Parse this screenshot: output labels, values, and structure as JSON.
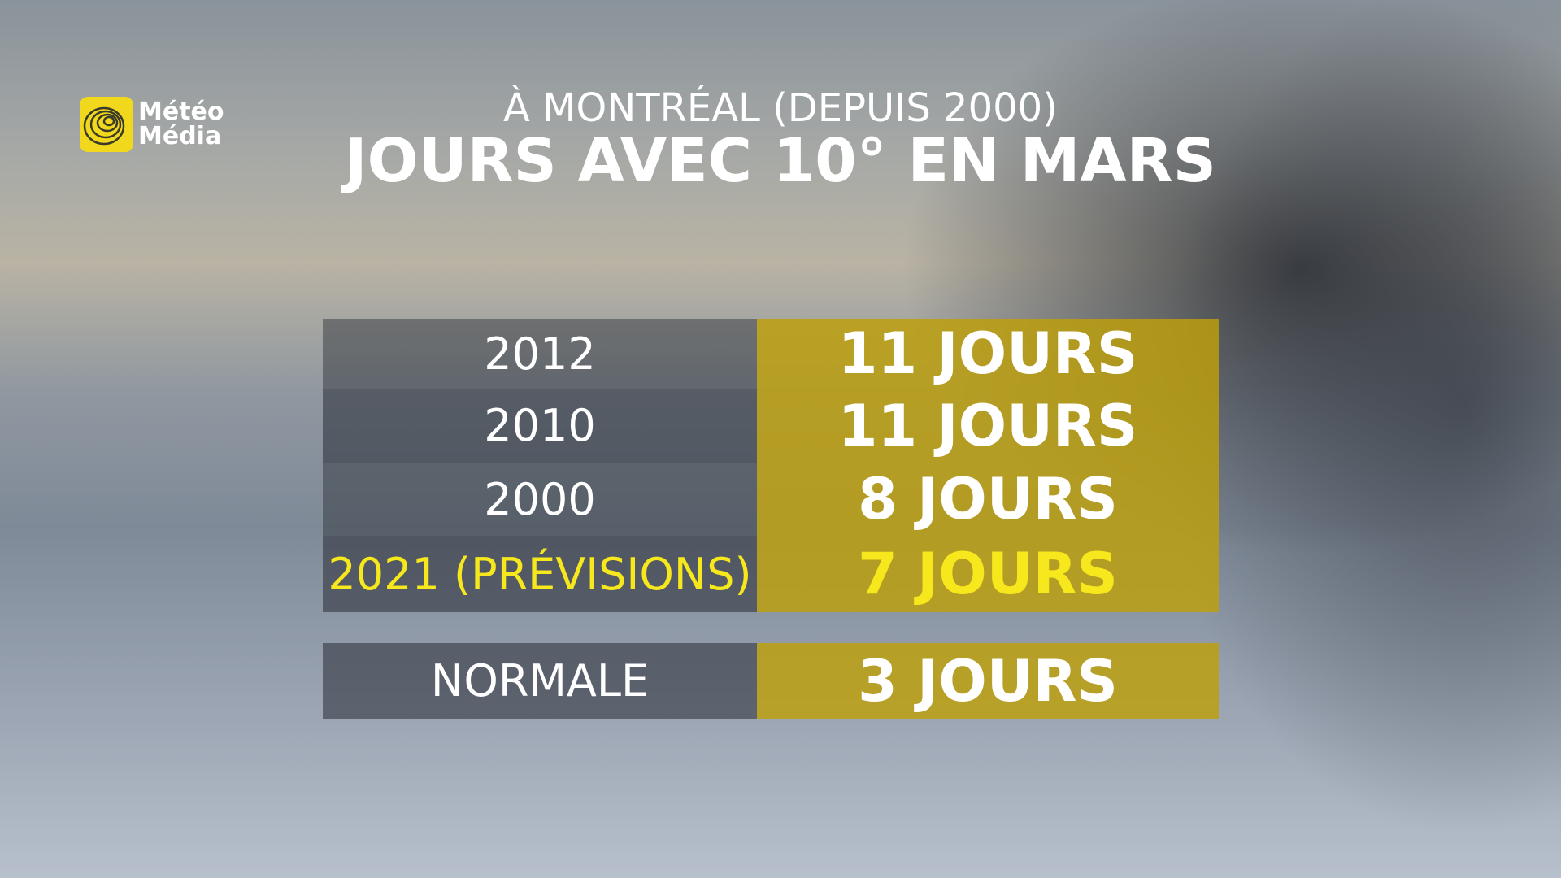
{
  "logo": {
    "line1": "Météo",
    "line2": "Média"
  },
  "header": {
    "subtitle": "À MONTRÉAL (DEPUIS 2000)",
    "title": "JOURS AVEC 10° EN MARS"
  },
  "table": {
    "rows": [
      [
        "2012",
        "11 JOURS"
      ],
      [
        "2010",
        "11 JOURS"
      ],
      [
        "2000",
        "8 JOURS"
      ],
      [
        "2021 (PRÉVISIONS)",
        "7 JOURS"
      ]
    ],
    "normal": [
      "NORMALE",
      "3 JOURS"
    ]
  }
}
